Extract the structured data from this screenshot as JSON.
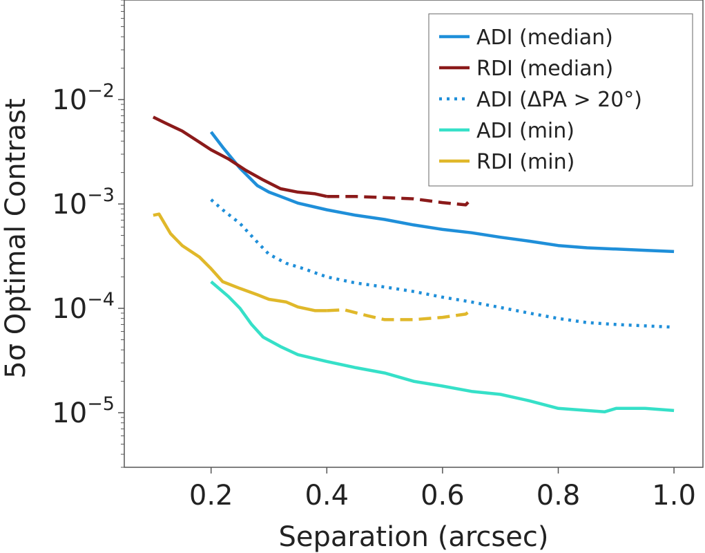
{
  "chart_data": {
    "type": "line",
    "xlabel": "Separation (arcsec)",
    "ylabel": "5σ Optimal Contrast",
    "xlim": [
      0.05,
      1.05
    ],
    "ylim": [
      3e-06,
      0.09
    ],
    "yscale": "log",
    "x_ticks": [
      0.2,
      0.4,
      0.6,
      0.8,
      1.0
    ],
    "x_tick_labels": [
      "0.2",
      "0.4",
      "0.6",
      "0.8",
      "1.0"
    ],
    "y_ticks": [
      1e-05,
      0.0001,
      0.001,
      0.01
    ],
    "y_tick_labels": [
      {
        "base": "10",
        "exp": "−5"
      },
      {
        "base": "10",
        "exp": "−4"
      },
      {
        "base": "10",
        "exp": "−3"
      },
      {
        "base": "10",
        "exp": "−2"
      }
    ],
    "grid": false,
    "legend_position": "top-right",
    "series": [
      {
        "name": "ADI (median)",
        "color": "#1f8fd9",
        "style": "solid",
        "points": [
          [
            0.2,
            0.0049
          ],
          [
            0.22,
            0.0035
          ],
          [
            0.25,
            0.0022
          ],
          [
            0.28,
            0.0015
          ],
          [
            0.3,
            0.0013
          ],
          [
            0.32,
            0.00118
          ],
          [
            0.35,
            0.00102
          ],
          [
            0.4,
            0.00088
          ],
          [
            0.45,
            0.00078
          ],
          [
            0.5,
            0.00071
          ],
          [
            0.55,
            0.00063
          ],
          [
            0.6,
            0.00057
          ],
          [
            0.65,
            0.00053
          ],
          [
            0.7,
            0.00048
          ],
          [
            0.75,
            0.00044
          ],
          [
            0.8,
            0.0004
          ],
          [
            0.85,
            0.00038
          ],
          [
            0.9,
            0.00037
          ],
          [
            0.95,
            0.00036
          ],
          [
            1.0,
            0.00035
          ]
        ]
      },
      {
        "name": "RDI (median)",
        "color": "#8b1a1a",
        "style": "solid",
        "points": [
          [
            0.1,
            0.0068
          ],
          [
            0.12,
            0.006
          ],
          [
            0.15,
            0.005
          ],
          [
            0.18,
            0.0039
          ],
          [
            0.2,
            0.0033
          ],
          [
            0.23,
            0.0027
          ],
          [
            0.26,
            0.0021
          ],
          [
            0.29,
            0.0017
          ],
          [
            0.32,
            0.0014
          ],
          [
            0.35,
            0.0013
          ],
          [
            0.38,
            0.00125
          ],
          [
            0.4,
            0.00118
          ]
        ]
      },
      {
        "name": "",
        "color": "#8b1a1a",
        "style": "dashed",
        "points": [
          [
            0.4,
            0.00118
          ],
          [
            0.45,
            0.00118
          ],
          [
            0.5,
            0.00115
          ],
          [
            0.55,
            0.00112
          ],
          [
            0.6,
            0.00103
          ],
          [
            0.64,
            0.00098
          ],
          [
            0.65,
            0.00112
          ]
        ]
      },
      {
        "name": "ADI (ΔPA > 20°)",
        "color": "#1f8fd9",
        "style": "dotted",
        "points": [
          [
            0.2,
            0.0011
          ],
          [
            0.22,
            0.00088
          ],
          [
            0.25,
            0.00065
          ],
          [
            0.28,
            0.00043
          ],
          [
            0.3,
            0.00033
          ],
          [
            0.33,
            0.00027
          ],
          [
            0.36,
            0.00024
          ],
          [
            0.4,
            0.0002
          ],
          [
            0.45,
            0.000175
          ],
          [
            0.5,
            0.00016
          ],
          [
            0.55,
            0.000145
          ],
          [
            0.6,
            0.000128
          ],
          [
            0.65,
            0.000115
          ],
          [
            0.7,
            0.000102
          ],
          [
            0.75,
            9e-05
          ],
          [
            0.8,
            8e-05
          ],
          [
            0.85,
            7.3e-05
          ],
          [
            0.9,
            7e-05
          ],
          [
            0.95,
            6.8e-05
          ],
          [
            1.0,
            6.6e-05
          ]
        ]
      },
      {
        "name": "ADI (min)",
        "color": "#36e0c8",
        "style": "solid",
        "points": [
          [
            0.2,
            0.00018
          ],
          [
            0.23,
            0.00013
          ],
          [
            0.25,
            0.0001
          ],
          [
            0.27,
            7e-05
          ],
          [
            0.29,
            5.3e-05
          ],
          [
            0.32,
            4.3e-05
          ],
          [
            0.35,
            3.6e-05
          ],
          [
            0.4,
            3.1e-05
          ],
          [
            0.45,
            2.7e-05
          ],
          [
            0.5,
            2.4e-05
          ],
          [
            0.55,
            2e-05
          ],
          [
            0.6,
            1.8e-05
          ],
          [
            0.65,
            1.6e-05
          ],
          [
            0.7,
            1.5e-05
          ],
          [
            0.75,
            1.3e-05
          ],
          [
            0.8,
            1.1e-05
          ],
          [
            0.85,
            1.05e-05
          ],
          [
            0.88,
            1.02e-05
          ],
          [
            0.9,
            1.1e-05
          ],
          [
            0.95,
            1.1e-05
          ],
          [
            1.0,
            1.05e-05
          ]
        ]
      },
      {
        "name": "RDI (min)",
        "color": "#e0b82a",
        "style": "solid",
        "points": [
          [
            0.1,
            0.00078
          ],
          [
            0.11,
            0.0008
          ],
          [
            0.13,
            0.00052
          ],
          [
            0.15,
            0.0004
          ],
          [
            0.18,
            0.00031
          ],
          [
            0.2,
            0.00024
          ],
          [
            0.22,
            0.00018
          ],
          [
            0.25,
            0.000155
          ],
          [
            0.28,
            0.000135
          ],
          [
            0.3,
            0.000122
          ],
          [
            0.33,
            0.000115
          ],
          [
            0.35,
            0.000103
          ],
          [
            0.38,
            9.5e-05
          ],
          [
            0.4,
            9.5e-05
          ]
        ]
      },
      {
        "name": "",
        "color": "#e0b82a",
        "style": "dashed",
        "points": [
          [
            0.4,
            9.5e-05
          ],
          [
            0.43,
            9.7e-05
          ],
          [
            0.47,
            8.5e-05
          ],
          [
            0.5,
            7.8e-05
          ],
          [
            0.55,
            7.8e-05
          ],
          [
            0.6,
            8.2e-05
          ],
          [
            0.64,
            8.8e-05
          ],
          [
            0.65,
            9.7e-05
          ]
        ]
      }
    ]
  }
}
